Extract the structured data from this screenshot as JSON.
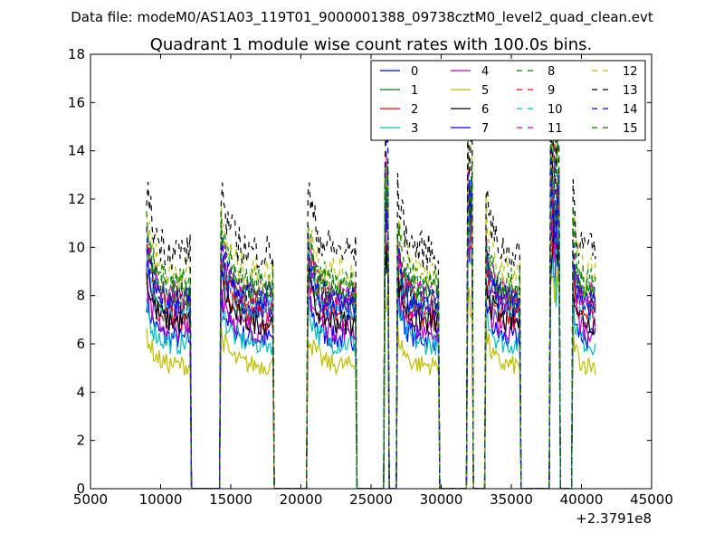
{
  "suptitle": "Data file: modeM0/AS1A03_119T01_9000001388_09738cztM0_level2_quad_clean.evt",
  "chart_data": {
    "type": "line",
    "title": "Quadrant 1 module wise count rates with 100.0s bins.",
    "xlabel": "",
    "ylabel": "",
    "xlim": [
      5000,
      45000
    ],
    "ylim": [
      0,
      18
    ],
    "x_ticks": [
      "5000",
      "10000",
      "15000",
      "20000",
      "25000",
      "30000",
      "35000",
      "40000",
      "45000"
    ],
    "y_ticks": [
      "0",
      "2",
      "4",
      "6",
      "8",
      "10",
      "12",
      "14",
      "16",
      "18"
    ],
    "x_offset_label": "+2.3791e8",
    "grid": false,
    "legend_placement": "top-right",
    "bin_seconds": 100,
    "x_start": 9000,
    "x_end": 41000,
    "segments": [
      {
        "start": 9000,
        "end": 12100
      },
      {
        "start": 14300,
        "end": 18000
      },
      {
        "start": 20500,
        "end": 23900
      },
      {
        "start": 26000,
        "end": 26200
      },
      {
        "start": 26900,
        "end": 29800
      },
      {
        "start": 31900,
        "end": 32200
      },
      {
        "start": 33200,
        "end": 35600
      },
      {
        "start": 37800,
        "end": 38400
      },
      {
        "start": 39400,
        "end": 41000
      }
    ],
    "series": [
      {
        "name": "0",
        "level": 6.2,
        "color": "#0000ff",
        "dash": "solid"
      },
      {
        "name": "1",
        "level": 7.8,
        "color": "#008000",
        "dash": "solid"
      },
      {
        "name": "2",
        "level": 7.1,
        "color": "#ff0000",
        "dash": "solid"
      },
      {
        "name": "3",
        "level": 6.0,
        "color": "#00bfbf",
        "dash": "solid"
      },
      {
        "name": "4",
        "level": 6.6,
        "color": "#bf00bf",
        "dash": "solid"
      },
      {
        "name": "5",
        "level": 5.1,
        "color": "#bfbf00",
        "dash": "solid"
      },
      {
        "name": "6",
        "level": 6.9,
        "color": "#000000",
        "dash": "solid"
      },
      {
        "name": "7",
        "level": 7.5,
        "color": "#0000ff",
        "dash": "solid"
      },
      {
        "name": "8",
        "level": 8.2,
        "color": "#008000",
        "dash": "dashed"
      },
      {
        "name": "9",
        "level": 7.7,
        "color": "#ff0000",
        "dash": "dashed"
      },
      {
        "name": "10",
        "level": 7.4,
        "color": "#00bfbf",
        "dash": "dashed"
      },
      {
        "name": "11",
        "level": 8.0,
        "color": "#bf00bf",
        "dash": "dashed"
      },
      {
        "name": "12",
        "level": 8.9,
        "color": "#bfbf00",
        "dash": "dashed"
      },
      {
        "name": "13",
        "level": 9.8,
        "color": "#000000",
        "dash": "dashed"
      },
      {
        "name": "14",
        "level": 7.9,
        "color": "#0000ff",
        "dash": "dashed"
      },
      {
        "name": "15",
        "level": 8.5,
        "color": "#008000",
        "dash": "dashed"
      }
    ]
  }
}
